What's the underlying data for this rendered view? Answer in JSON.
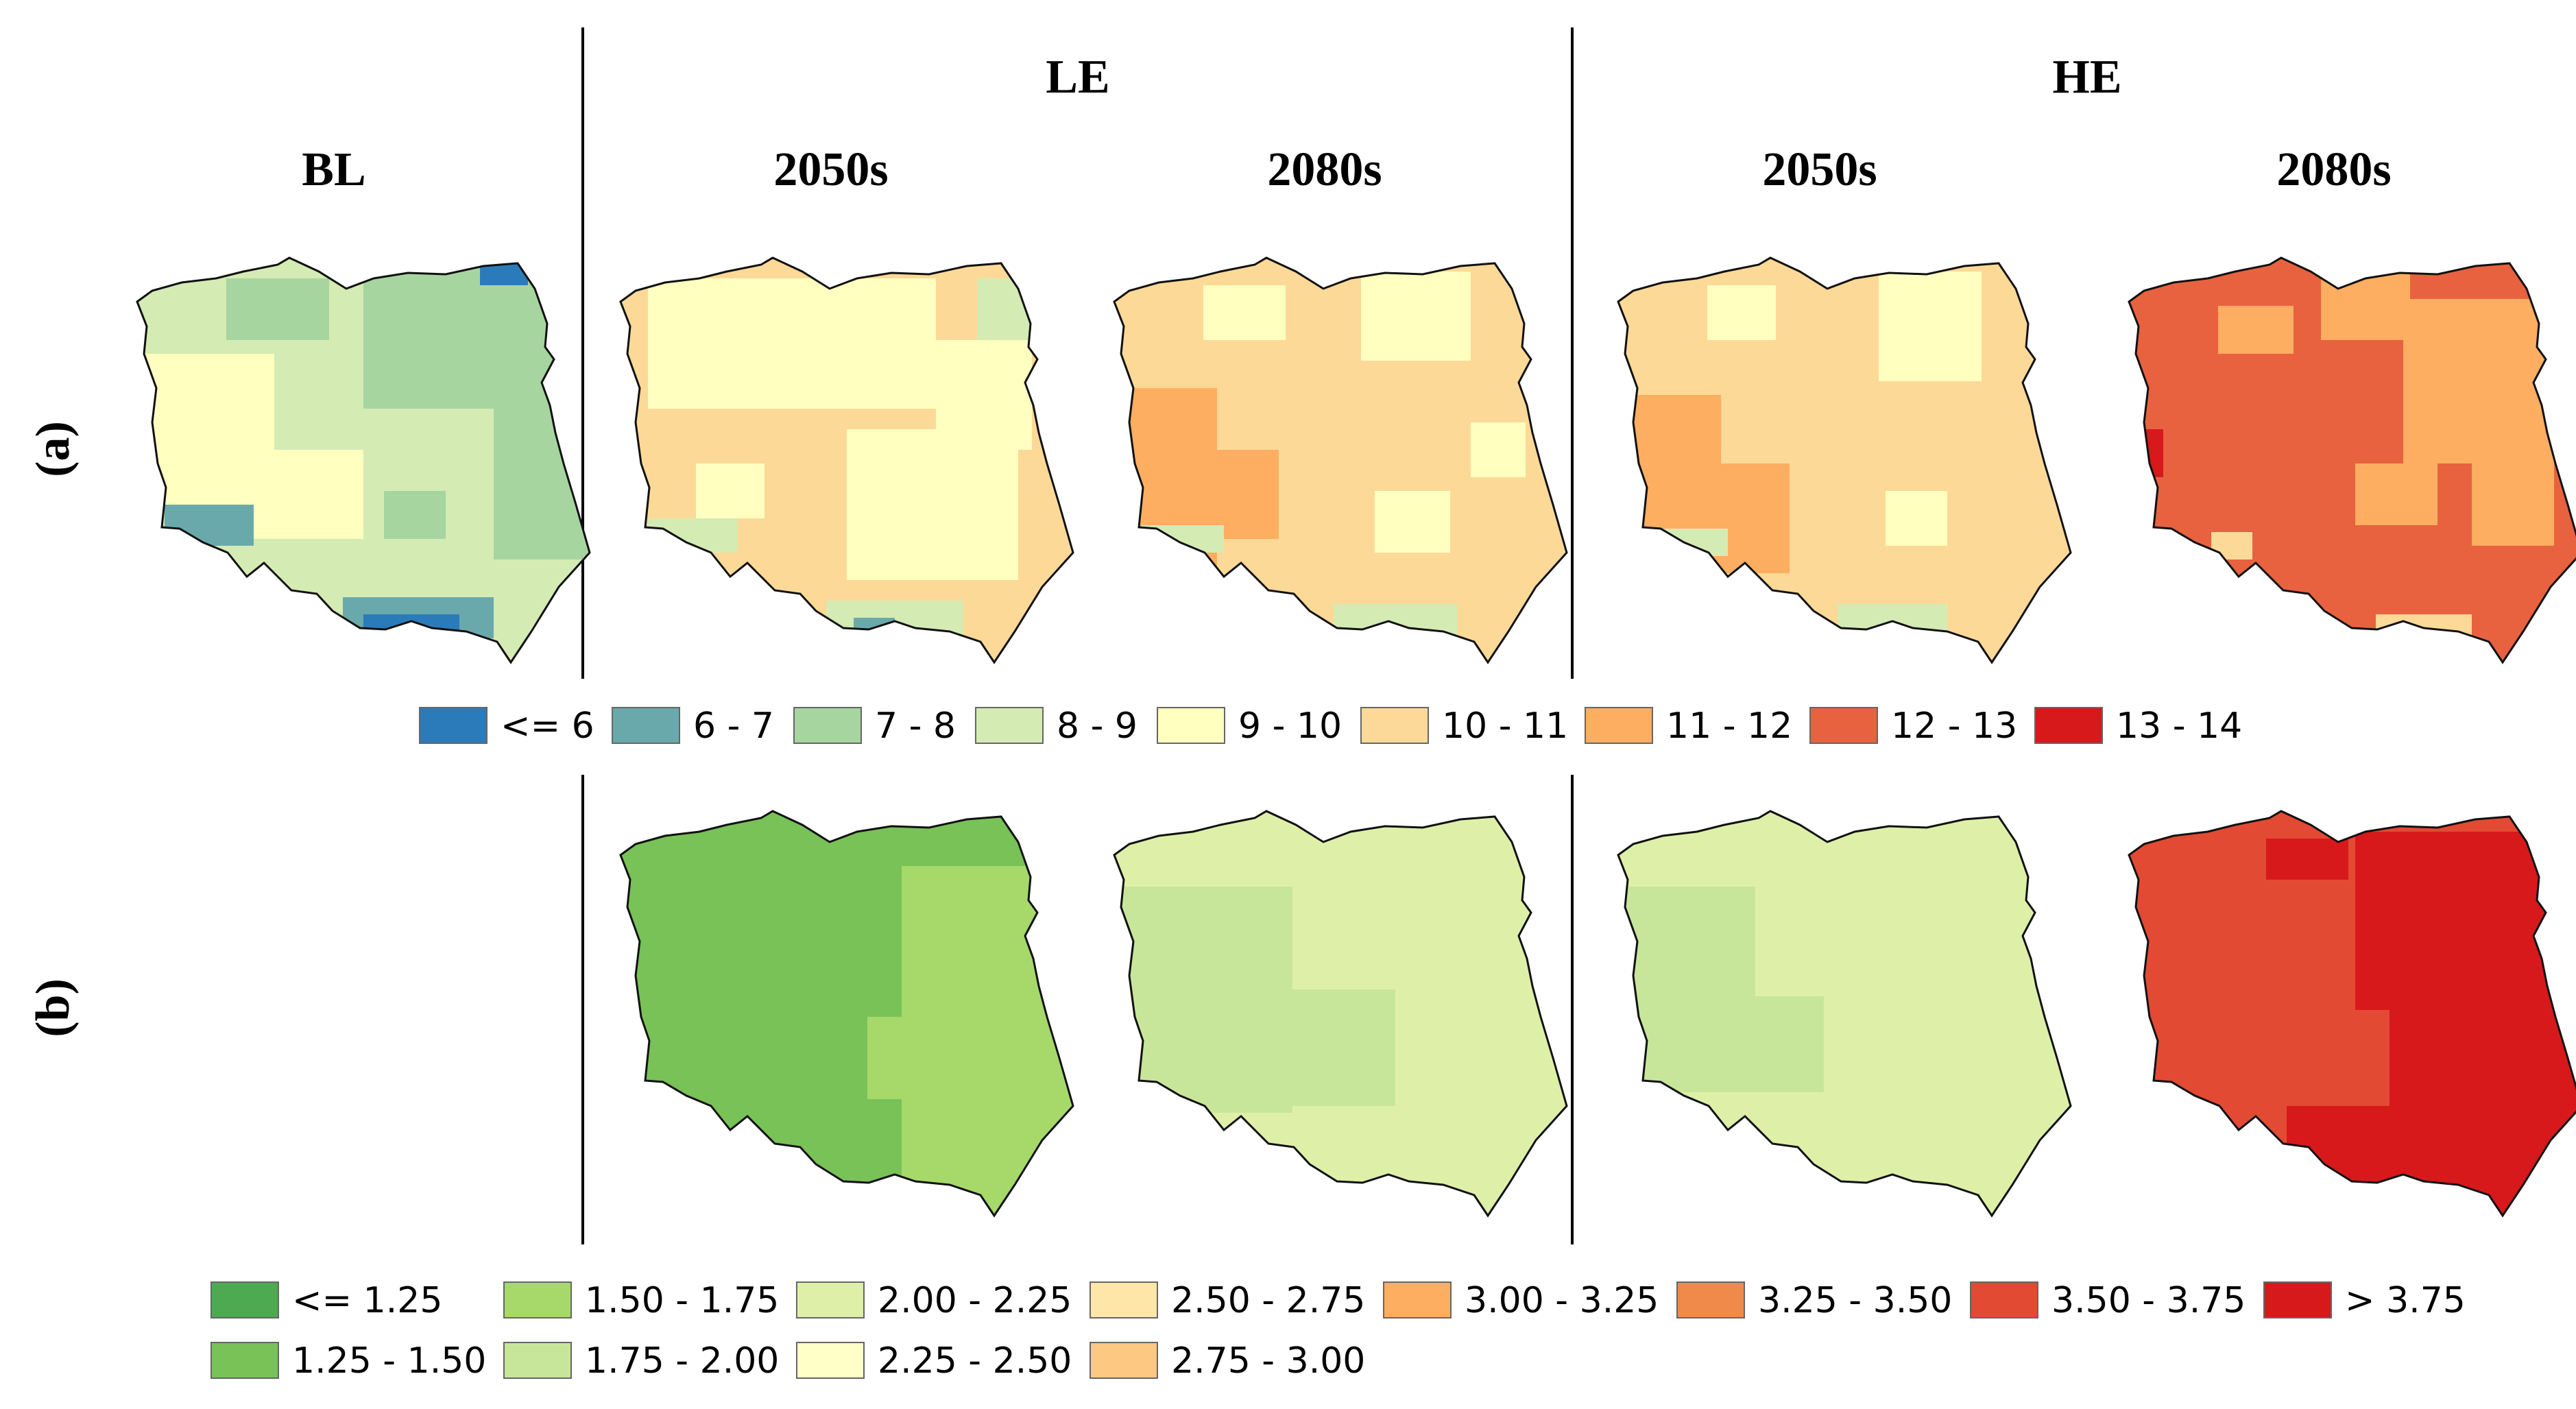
{
  "headers": {
    "bl": "BL",
    "le": "LE",
    "he": "HE",
    "le_2050": "2050s",
    "le_2080": "2080s",
    "he_2050": "2050s",
    "he_2080": "2080s"
  },
  "rows": {
    "a": "(a)",
    "b": "(b)"
  },
  "legend_a": {
    "items": [
      {
        "label": "<= 6",
        "color": "#2b7bba"
      },
      {
        "label": "6 - 7",
        "color": "#6aa9ab"
      },
      {
        "label": "7 - 8",
        "color": "#a7d5a0"
      },
      {
        "label": "8 - 9",
        "color": "#d5ebb4"
      },
      {
        "label": "9 - 10",
        "color": "#ffffc0"
      },
      {
        "label": "10 - 11",
        "color": "#fdd997"
      },
      {
        "label": "11 - 12",
        "color": "#fdae61"
      },
      {
        "label": "12 - 13",
        "color": "#e8623f"
      },
      {
        "label": "13 - 14",
        "color": "#d7191c"
      }
    ]
  },
  "legend_b": {
    "items": [
      {
        "label": "<= 1.25",
        "color": "#4daa50"
      },
      {
        "label": "1.25 - 1.50",
        "color": "#78c258"
      },
      {
        "label": "1.50 - 1.75",
        "color": "#a6d96a"
      },
      {
        "label": "1.75 - 2.00",
        "color": "#c8e69a"
      },
      {
        "label": "2.00 - 2.25",
        "color": "#def0a8"
      },
      {
        "label": "2.25 - 2.50",
        "color": "#ffffc8"
      },
      {
        "label": "2.50 - 2.75",
        "color": "#fee6a8"
      },
      {
        "label": "2.75 - 3.00",
        "color": "#fdc882"
      },
      {
        "label": "3.00 - 3.25",
        "color": "#fdae61"
      },
      {
        "label": "3.25 - 3.50",
        "color": "#f08a4b"
      },
      {
        "label": "3.50 - 3.75",
        "color": "#e34a33"
      },
      {
        "label": "> 3.75",
        "color": "#d7191c"
      }
    ]
  }
}
